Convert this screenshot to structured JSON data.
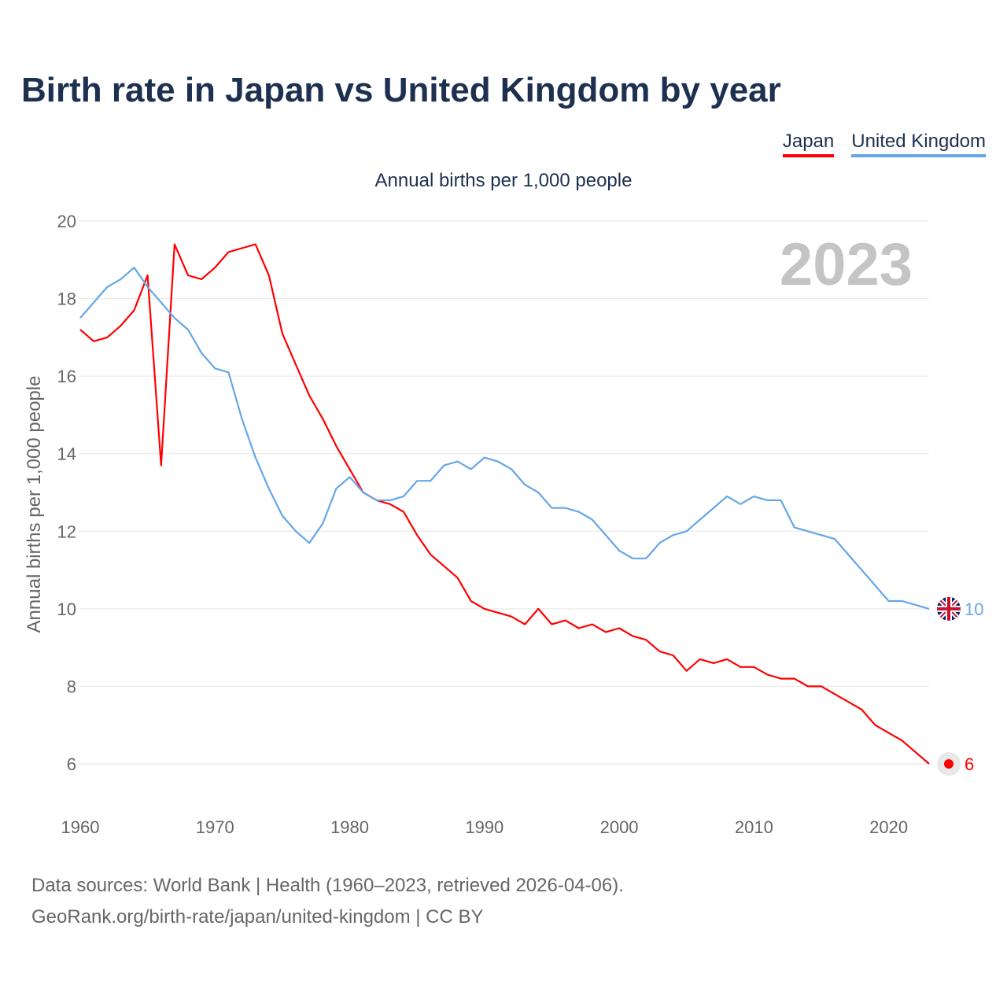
{
  "title": "Birth rate in Japan vs United Kingdom by year",
  "subtitle": "Annual births per 1,000 people",
  "year_label": "2023",
  "footer": {
    "line1": "Data sources: World Bank | Health (1960–2023, retrieved 2026-04-06).",
    "line2": "GeoRank.org/birth-rate/japan/united-kingdom | CC BY"
  },
  "chart_data": {
    "type": "line",
    "title": "Birth rate in Japan vs United Kingdom by year",
    "xlabel": "",
    "ylabel": "Annual births per 1,000 people",
    "xlim": [
      1960,
      2023
    ],
    "ylim": [
      6,
      20
    ],
    "x_ticks": [
      1960,
      1970,
      1980,
      1990,
      2000,
      2010,
      2020
    ],
    "y_ticks": [
      6,
      8,
      10,
      12,
      14,
      16,
      18,
      20
    ],
    "grid": true,
    "legend_position": "top-right",
    "x_start": 1960,
    "series": [
      {
        "name": "Japan",
        "color": "#ff0000",
        "end_label": "6",
        "values": [
          17.2,
          16.9,
          17.0,
          17.3,
          17.7,
          18.6,
          13.7,
          19.4,
          18.6,
          18.5,
          18.8,
          19.2,
          19.3,
          19.4,
          18.6,
          17.1,
          16.3,
          15.5,
          14.9,
          14.2,
          13.6,
          13.0,
          12.8,
          12.7,
          12.5,
          11.9,
          11.4,
          11.1,
          10.8,
          10.2,
          10.0,
          9.9,
          9.8,
          9.6,
          10.0,
          9.6,
          9.7,
          9.5,
          9.6,
          9.4,
          9.5,
          9.3,
          9.2,
          8.9,
          8.8,
          8.4,
          8.7,
          8.6,
          8.7,
          8.5,
          8.5,
          8.3,
          8.2,
          8.2,
          8.0,
          8.0,
          7.8,
          7.6,
          7.4,
          7.0,
          6.8,
          6.6,
          6.3,
          6.0
        ]
      },
      {
        "name": "United Kingdom",
        "color": "#64a6e8",
        "end_label": "10",
        "values": [
          17.5,
          17.9,
          18.3,
          18.5,
          18.8,
          18.3,
          17.9,
          17.5,
          17.2,
          16.6,
          16.2,
          16.1,
          14.9,
          13.9,
          13.1,
          12.4,
          12.0,
          11.7,
          12.2,
          13.1,
          13.4,
          13.0,
          12.8,
          12.8,
          12.9,
          13.3,
          13.3,
          13.7,
          13.8,
          13.6,
          13.9,
          13.8,
          13.6,
          13.2,
          13.0,
          12.6,
          12.6,
          12.5,
          12.3,
          11.9,
          11.5,
          11.3,
          11.3,
          11.7,
          11.9,
          12.0,
          12.3,
          12.6,
          12.9,
          12.7,
          12.9,
          12.8,
          12.8,
          12.1,
          12.0,
          11.9,
          11.8,
          11.4,
          11.0,
          10.6,
          10.2,
          10.2,
          10.1,
          10.0
        ]
      }
    ]
  }
}
